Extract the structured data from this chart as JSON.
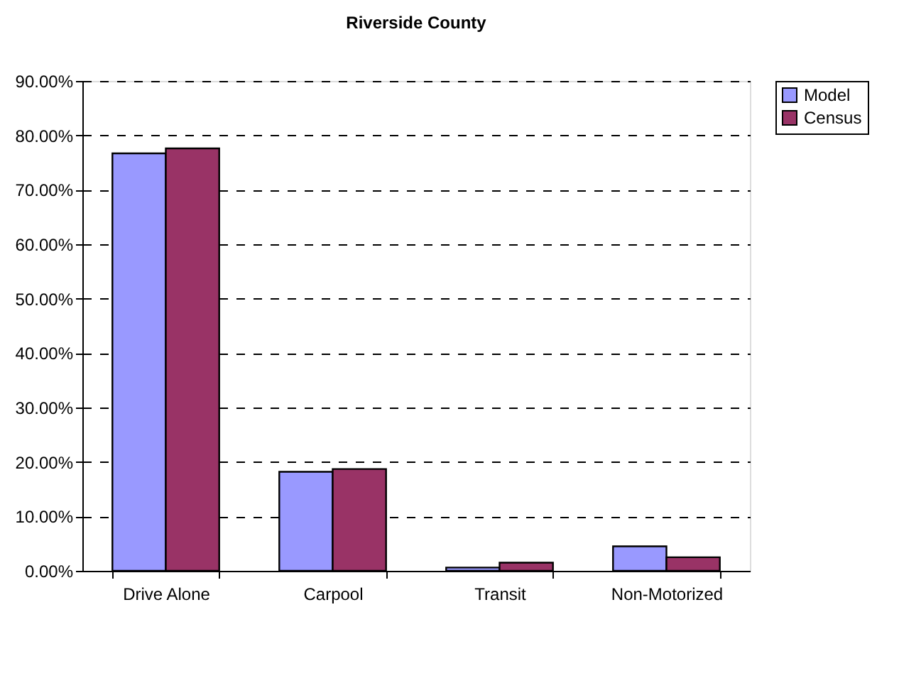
{
  "chart_data": {
    "type": "bar",
    "title": "Riverside County",
    "categories": [
      "Drive Alone",
      "Carpool",
      "Transit",
      "Non-Motorized"
    ],
    "series": [
      {
        "name": "Model",
        "color": "#9999ff",
        "values": [
          76.7,
          18.2,
          0.6,
          4.5
        ]
      },
      {
        "name": "Census",
        "color": "#993366",
        "values": [
          77.6,
          18.7,
          1.5,
          2.5
        ]
      }
    ],
    "ylim": [
      0,
      90
    ],
    "yticks": [
      {
        "value": 0,
        "label": "0.00%"
      },
      {
        "value": 10,
        "label": "10.00%"
      },
      {
        "value": 20,
        "label": "20.00%"
      },
      {
        "value": 30,
        "label": "30.00%"
      },
      {
        "value": 40,
        "label": "40.00%"
      },
      {
        "value": 50,
        "label": "50.00%"
      },
      {
        "value": 60,
        "label": "60.00%"
      },
      {
        "value": 70,
        "label": "70.00%"
      },
      {
        "value": 80,
        "label": "80.00%"
      },
      {
        "value": 90,
        "label": "90.00%"
      }
    ],
    "grid": "y",
    "legend": "right"
  }
}
